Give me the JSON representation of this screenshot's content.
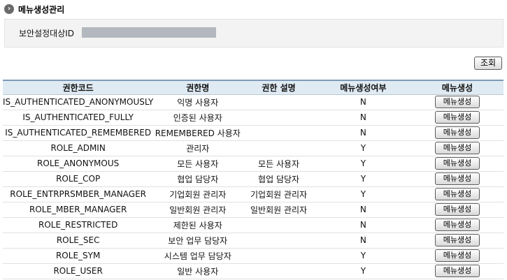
{
  "page": {
    "title": "메뉴생성관리",
    "title_icon": "chevron-right-circle-icon"
  },
  "search": {
    "label": "보안설정대상ID",
    "value": "",
    "button_label": "조회"
  },
  "table": {
    "headers": [
      "권한코드",
      "권한명",
      "권한 설명",
      "메뉴생성여부",
      "메뉴생성"
    ],
    "rows": [
      {
        "code": "IS_AUTHENTICATED_ANONYMOUSLY",
        "name": "익명 사용자",
        "desc": "",
        "yn": "N",
        "action": "메뉴생성"
      },
      {
        "code": "IS_AUTHENTICATED_FULLY",
        "name": "인증된 사용자",
        "desc": "",
        "yn": "N",
        "action": "메뉴생성"
      },
      {
        "code": "IS_AUTHENTICATED_REMEMBERED",
        "name": "REMEMBERED 사용자",
        "desc": "",
        "yn": "N",
        "action": "메뉴생성"
      },
      {
        "code": "ROLE_ADMIN",
        "name": "관리자",
        "desc": "",
        "yn": "Y",
        "action": "메뉴생성"
      },
      {
        "code": "ROLE_ANONYMOUS",
        "name": "모든 사용자",
        "desc": "모든 사용자",
        "yn": "Y",
        "action": "메뉴생성"
      },
      {
        "code": "ROLE_COP",
        "name": "협업 담당자",
        "desc": "협업 담당자",
        "yn": "Y",
        "action": "메뉴생성"
      },
      {
        "code": "ROLE_ENTRPRSMBER_MANAGER",
        "name": "기업회원 관리자",
        "desc": "기업회원 관리자",
        "yn": "Y",
        "action": "메뉴생성"
      },
      {
        "code": "ROLE_MBER_MANAGER",
        "name": "일반회원 관리자",
        "desc": "일반회원 관리자",
        "yn": "N",
        "action": "메뉴생성"
      },
      {
        "code": "ROLE_RESTRICTED",
        "name": "제한된 사용자",
        "desc": "",
        "yn": "N",
        "action": "메뉴생성"
      },
      {
        "code": "ROLE_SEC",
        "name": "보안 업무 담당자",
        "desc": "",
        "yn": "N",
        "action": "메뉴생성"
      },
      {
        "code": "ROLE_SYM",
        "name": "시스템 업무 담당자",
        "desc": "",
        "yn": "Y",
        "action": "메뉴생성"
      },
      {
        "code": "ROLE_USER",
        "name": "일반 사용자",
        "desc": "",
        "yn": "Y",
        "action": "메뉴생성"
      }
    ]
  },
  "colors": {
    "header_bg": "#dfeaf3",
    "header_border": "#7d9ab5",
    "search_bg": "#f3f3f3",
    "input_bg": "#b3b8be"
  }
}
